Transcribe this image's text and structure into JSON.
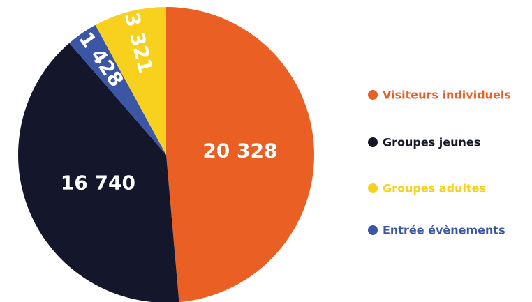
{
  "chart_data": {
    "type": "pie",
    "categories": [
      "Visiteurs individuels",
      "Groupes jeunes",
      "Entrée évènements",
      "Groupes adultes"
    ],
    "values": [
      20328,
      16740,
      1428,
      3321
    ],
    "value_labels": [
      "20 328",
      "16 740",
      "1 428",
      "3 321"
    ],
    "colors": [
      "#e95f24",
      "#14172b",
      "#3a56a5",
      "#f7d11e"
    ]
  }
}
